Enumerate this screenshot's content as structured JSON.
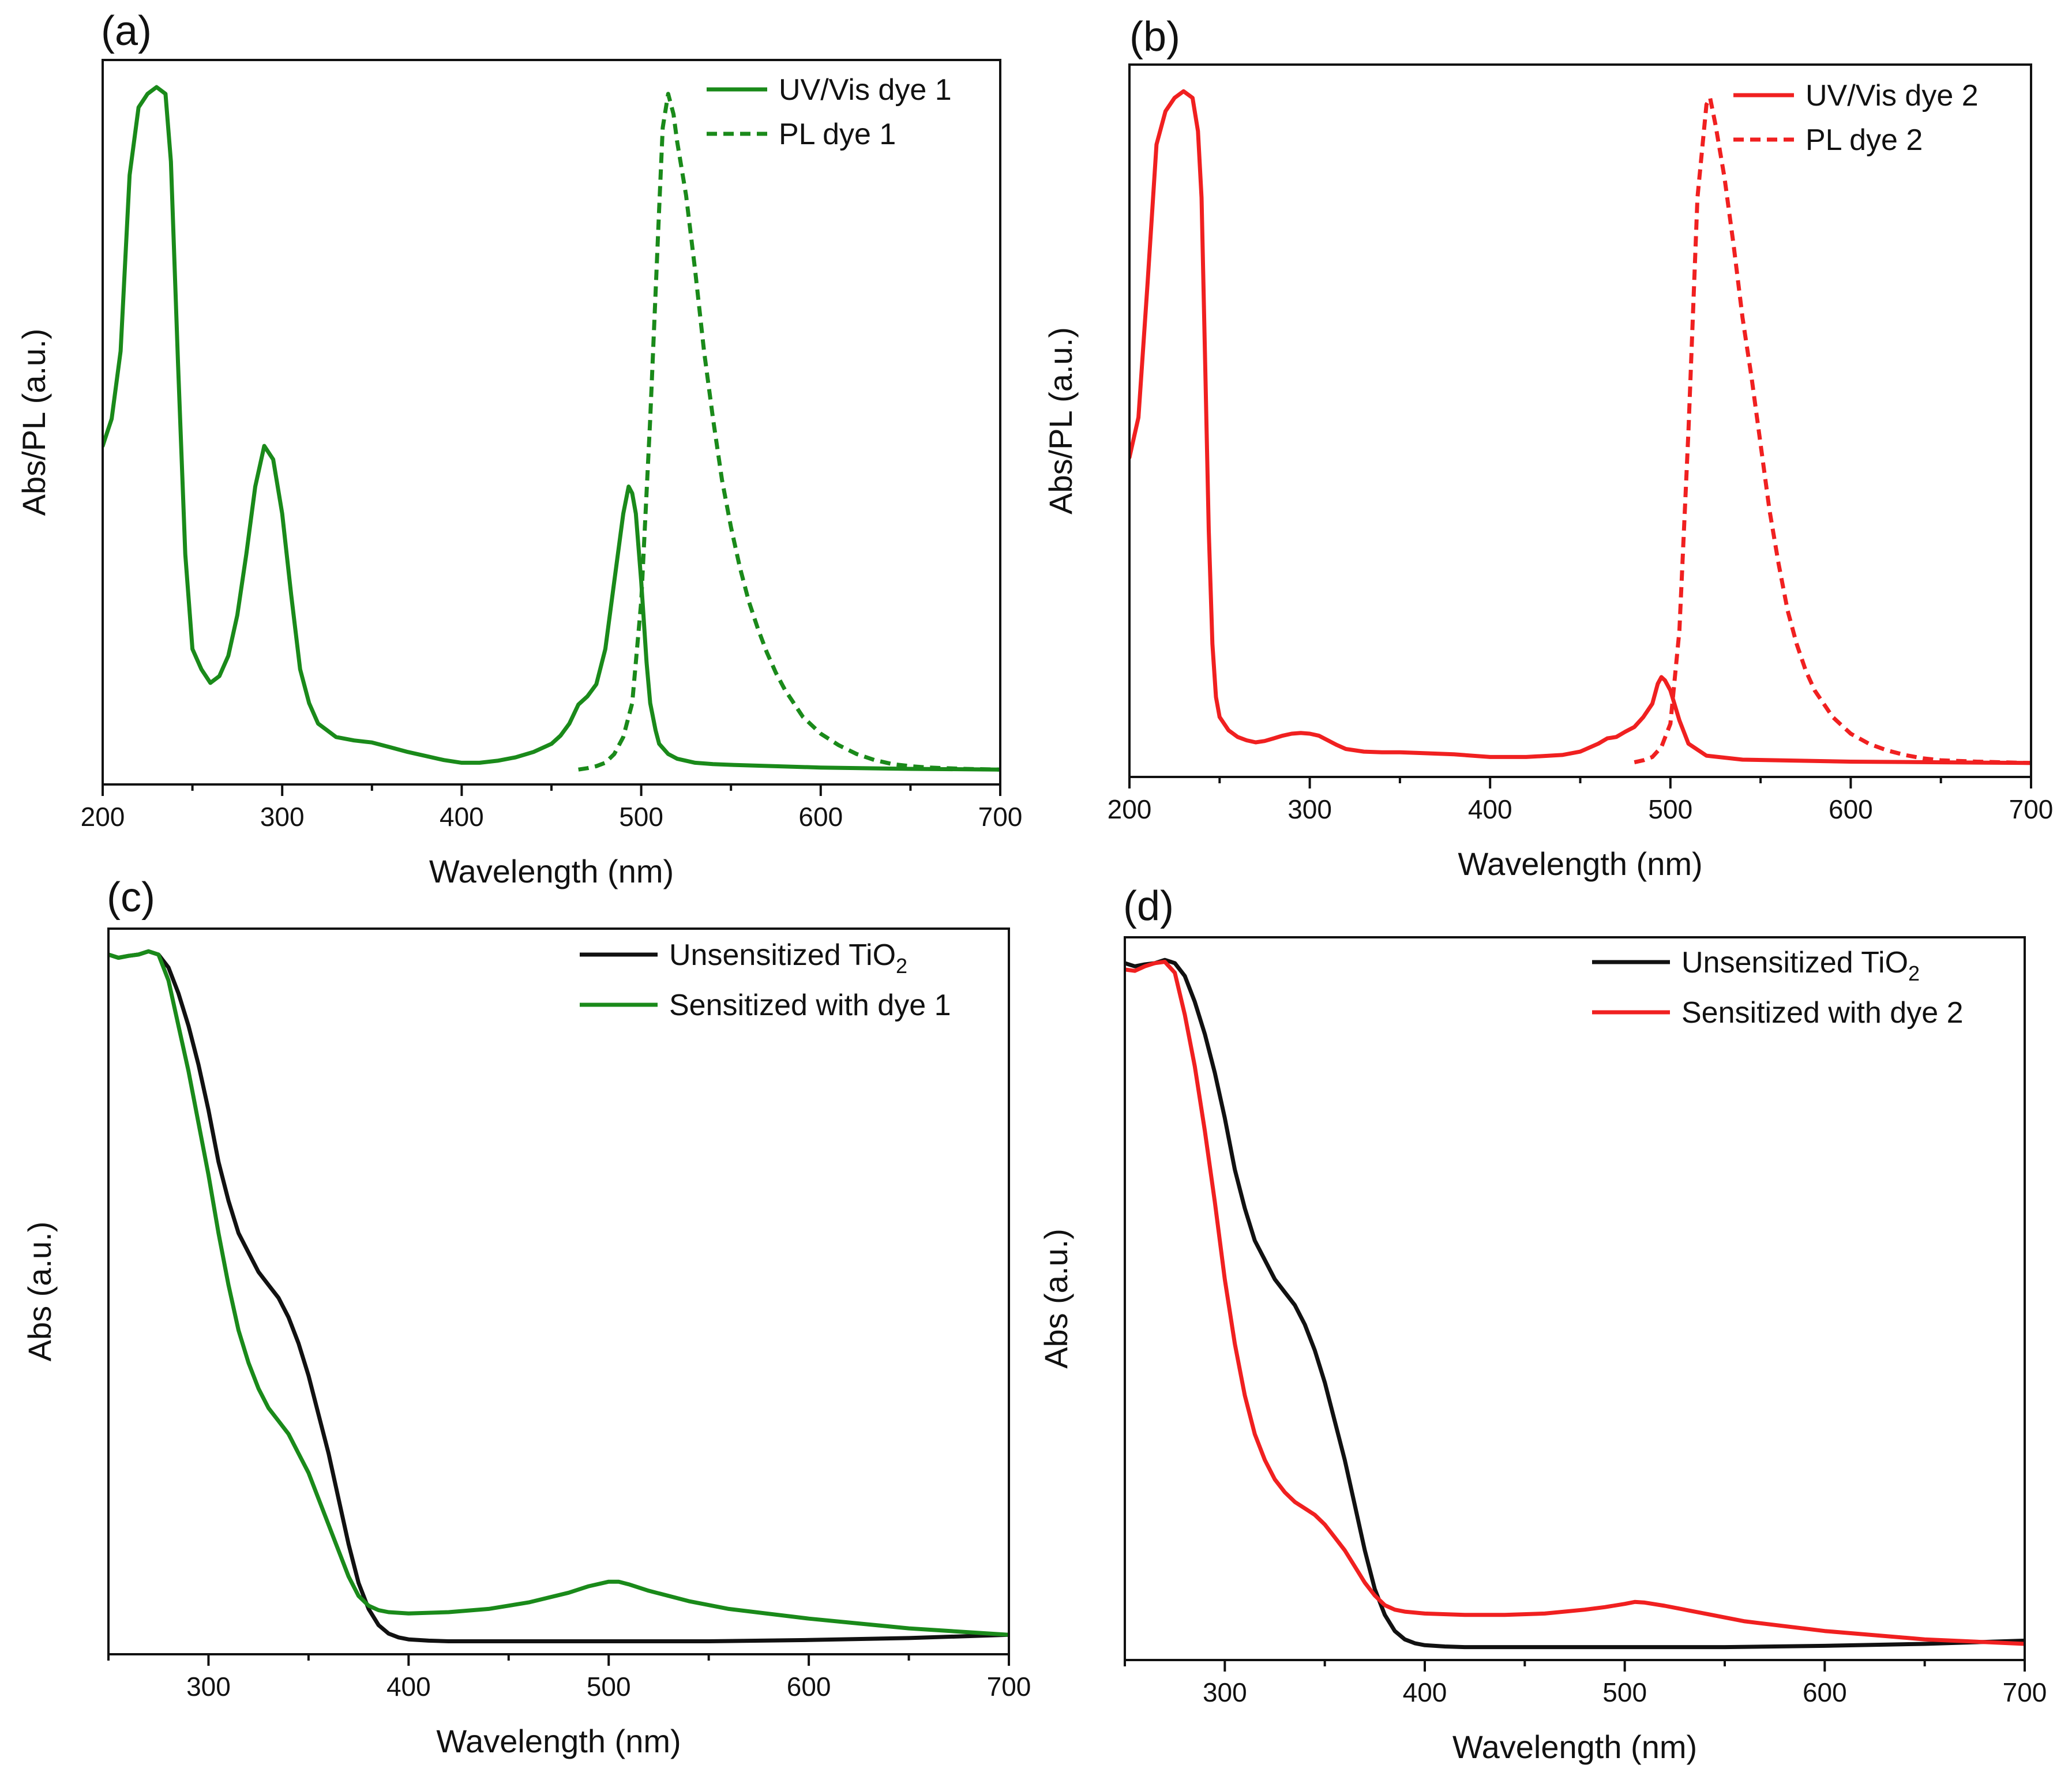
{
  "chart_data": [
    {
      "id": "a",
      "type": "line",
      "panel_label": "(a)",
      "xlabel": "Wavelength (nm)",
      "ylabel": "Abs/PL (a.u.)",
      "xlim": [
        200,
        700
      ],
      "ylim": [
        -0.02,
        1.05
      ],
      "xticks": [
        200,
        300,
        400,
        500,
        600,
        700
      ],
      "show_y_ticks": false,
      "legend_position": "top-right",
      "series": [
        {
          "name": "UV/Vis dye 1",
          "color": "#1a8a1a",
          "dash": "solid",
          "x": [
            200,
            205,
            210,
            215,
            220,
            225,
            230,
            235,
            238,
            242,
            246,
            250,
            255,
            260,
            265,
            270,
            275,
            280,
            285,
            290,
            295,
            300,
            305,
            310,
            315,
            320,
            325,
            330,
            340,
            350,
            360,
            370,
            380,
            390,
            400,
            410,
            420,
            430,
            440,
            450,
            455,
            460,
            465,
            470,
            475,
            480,
            485,
            490,
            493,
            495,
            497,
            500,
            503,
            505,
            508,
            510,
            515,
            520,
            530,
            540,
            550,
            600,
            650,
            700
          ],
          "y": [
            0.48,
            0.52,
            0.62,
            0.88,
            0.98,
            1.0,
            1.01,
            1.0,
            0.9,
            0.6,
            0.32,
            0.18,
            0.15,
            0.13,
            0.14,
            0.17,
            0.23,
            0.32,
            0.42,
            0.48,
            0.46,
            0.38,
            0.26,
            0.15,
            0.1,
            0.07,
            0.06,
            0.05,
            0.045,
            0.042,
            0.035,
            0.028,
            0.022,
            0.016,
            0.012,
            0.012,
            0.015,
            0.02,
            0.028,
            0.04,
            0.052,
            0.07,
            0.098,
            0.11,
            0.128,
            0.18,
            0.28,
            0.38,
            0.42,
            0.41,
            0.38,
            0.28,
            0.16,
            0.1,
            0.06,
            0.04,
            0.025,
            0.018,
            0.012,
            0.01,
            0.009,
            0.005,
            0.003,
            0.002
          ]
        },
        {
          "name": "PL dye 1",
          "color": "#1a8a1a",
          "dash": "dashed",
          "x": [
            465,
            470,
            475,
            480,
            485,
            490,
            495,
            500,
            505,
            510,
            512,
            515,
            518,
            520,
            525,
            530,
            535,
            540,
            545,
            550,
            555,
            560,
            565,
            570,
            575,
            580,
            590,
            600,
            610,
            620,
            630,
            640,
            650,
            660,
            680,
            700
          ],
          "y": [
            0.002,
            0.004,
            0.007,
            0.012,
            0.025,
            0.05,
            0.1,
            0.25,
            0.52,
            0.83,
            0.95,
            1.0,
            0.97,
            0.93,
            0.85,
            0.74,
            0.62,
            0.52,
            0.43,
            0.36,
            0.3,
            0.25,
            0.21,
            0.175,
            0.145,
            0.12,
            0.08,
            0.055,
            0.038,
            0.025,
            0.016,
            0.01,
            0.007,
            0.005,
            0.003,
            0.002
          ]
        }
      ]
    },
    {
      "id": "b",
      "type": "line",
      "panel_label": "(b)",
      "xlabel": "Wavelength (nm)",
      "ylabel": "Abs/PL (a.u.)",
      "xlim": [
        200,
        700
      ],
      "ylim": [
        -0.02,
        1.05
      ],
      "xticks": [
        200,
        300,
        400,
        500,
        600,
        700
      ],
      "show_y_ticks": false,
      "legend_position": "top-right",
      "series": [
        {
          "name": "UV/Vis dye 2",
          "color": "#f02020",
          "dash": "solid",
          "x": [
            200,
            205,
            210,
            215,
            220,
            225,
            230,
            235,
            238,
            240,
            242,
            244,
            246,
            248,
            250,
            255,
            260,
            265,
            270,
            275,
            280,
            285,
            290,
            295,
            300,
            305,
            310,
            315,
            320,
            330,
            340,
            350,
            360,
            380,
            400,
            420,
            440,
            450,
            460,
            465,
            470,
            475,
            480,
            485,
            490,
            493,
            495,
            497,
            500,
            505,
            510,
            520,
            540,
            600,
            650,
            700
          ],
          "y": [
            0.46,
            0.52,
            0.72,
            0.93,
            0.98,
            1.0,
            1.01,
            1.0,
            0.95,
            0.85,
            0.6,
            0.35,
            0.18,
            0.1,
            0.07,
            0.05,
            0.04,
            0.035,
            0.032,
            0.034,
            0.038,
            0.042,
            0.045,
            0.046,
            0.045,
            0.042,
            0.035,
            0.028,
            0.022,
            0.018,
            0.017,
            0.017,
            0.016,
            0.014,
            0.01,
            0.01,
            0.013,
            0.018,
            0.03,
            0.038,
            0.04,
            0.048,
            0.055,
            0.07,
            0.09,
            0.12,
            0.13,
            0.125,
            0.11,
            0.065,
            0.03,
            0.012,
            0.006,
            0.003,
            0.002,
            0.001
          ]
        },
        {
          "name": "PL dye 2",
          "color": "#f02020",
          "dash": "dashed",
          "x": [
            480,
            485,
            490,
            495,
            500,
            505,
            510,
            515,
            520,
            522,
            525,
            530,
            535,
            540,
            545,
            550,
            555,
            560,
            565,
            570,
            575,
            580,
            590,
            600,
            610,
            620,
            630,
            640,
            650,
            670,
            700
          ],
          "y": [
            0.002,
            0.005,
            0.01,
            0.025,
            0.06,
            0.2,
            0.5,
            0.85,
            0.99,
            1.0,
            0.96,
            0.88,
            0.78,
            0.67,
            0.58,
            0.48,
            0.38,
            0.3,
            0.23,
            0.18,
            0.14,
            0.11,
            0.07,
            0.045,
            0.03,
            0.02,
            0.013,
            0.008,
            0.005,
            0.003,
            0.001
          ]
        }
      ]
    },
    {
      "id": "c",
      "type": "line",
      "panel_label": "(c)",
      "xlabel": "Wavelength (nm)",
      "ylabel": "Abs (a.u.)",
      "xlim": [
        250,
        700
      ],
      "ylim": [
        -0.02,
        1.1
      ],
      "xticks": [
        300,
        400,
        500,
        600,
        700
      ],
      "show_y_ticks": false,
      "legend_position": "top-right",
      "series": [
        {
          "name": "Unsensitized TiO2",
          "legend_text": "Unsensitized TiO",
          "legend_sub": "2",
          "color": "#111111",
          "dash": "solid",
          "x": [
            250,
            255,
            260,
            265,
            270,
            275,
            280,
            285,
            290,
            295,
            300,
            305,
            310,
            315,
            320,
            325,
            330,
            335,
            340,
            345,
            350,
            355,
            360,
            365,
            370,
            375,
            380,
            385,
            390,
            395,
            400,
            410,
            420,
            450,
            500,
            550,
            600,
            650,
            700
          ],
          "y": [
            1.06,
            1.055,
            1.058,
            1.06,
            1.065,
            1.06,
            1.04,
            1.0,
            0.95,
            0.89,
            0.82,
            0.74,
            0.68,
            0.63,
            0.6,
            0.57,
            0.55,
            0.53,
            0.5,
            0.46,
            0.41,
            0.35,
            0.29,
            0.22,
            0.15,
            0.09,
            0.05,
            0.025,
            0.012,
            0.006,
            0.003,
            0.001,
            0.0,
            0.0,
            0.0,
            0.0,
            0.002,
            0.005,
            0.01
          ]
        },
        {
          "name": "Sensitized with dye 1",
          "color": "#1a8a1a",
          "dash": "solid",
          "x": [
            250,
            255,
            260,
            265,
            270,
            275,
            280,
            285,
            290,
            295,
            300,
            305,
            310,
            315,
            320,
            325,
            330,
            335,
            340,
            345,
            350,
            355,
            360,
            365,
            370,
            375,
            380,
            385,
            390,
            400,
            420,
            440,
            460,
            480,
            490,
            500,
            505,
            510,
            520,
            540,
            560,
            600,
            650,
            700
          ],
          "y": [
            1.06,
            1.055,
            1.058,
            1.06,
            1.065,
            1.06,
            1.02,
            0.95,
            0.88,
            0.8,
            0.72,
            0.63,
            0.55,
            0.48,
            0.43,
            0.39,
            0.36,
            0.34,
            0.32,
            0.29,
            0.26,
            0.22,
            0.18,
            0.14,
            0.1,
            0.07,
            0.055,
            0.048,
            0.045,
            0.043,
            0.045,
            0.05,
            0.06,
            0.075,
            0.085,
            0.092,
            0.092,
            0.088,
            0.078,
            0.062,
            0.05,
            0.035,
            0.02,
            0.01
          ]
        }
      ]
    },
    {
      "id": "d",
      "type": "line",
      "panel_label": "(d)",
      "xlabel": "Wavelength (nm)",
      "ylabel": "Abs (a.u.)",
      "xlim": [
        250,
        700
      ],
      "ylim": [
        -0.02,
        1.1
      ],
      "xticks": [
        300,
        400,
        500,
        600,
        700
      ],
      "show_y_ticks": false,
      "legend_position": "top-right",
      "series": [
        {
          "name": "Unsensitized TiO2",
          "legend_text": "Unsensitized TiO",
          "legend_sub": "2",
          "color": "#111111",
          "dash": "solid",
          "x": [
            250,
            255,
            260,
            265,
            270,
            275,
            280,
            285,
            290,
            295,
            300,
            305,
            310,
            315,
            320,
            325,
            330,
            335,
            340,
            345,
            350,
            355,
            360,
            365,
            370,
            375,
            380,
            385,
            390,
            395,
            400,
            410,
            420,
            450,
            500,
            550,
            600,
            650,
            700
          ],
          "y": [
            1.06,
            1.055,
            1.058,
            1.06,
            1.065,
            1.06,
            1.04,
            1.0,
            0.95,
            0.89,
            0.82,
            0.74,
            0.68,
            0.63,
            0.6,
            0.57,
            0.55,
            0.53,
            0.5,
            0.46,
            0.41,
            0.35,
            0.29,
            0.22,
            0.15,
            0.09,
            0.05,
            0.025,
            0.012,
            0.006,
            0.003,
            0.001,
            0.0,
            0.0,
            0.0,
            0.0,
            0.002,
            0.005,
            0.01
          ]
        },
        {
          "name": "Sensitized with dye 2",
          "color": "#f02020",
          "dash": "solid",
          "x": [
            250,
            255,
            260,
            265,
            270,
            275,
            280,
            285,
            290,
            295,
            300,
            305,
            310,
            315,
            320,
            325,
            330,
            335,
            340,
            345,
            350,
            355,
            360,
            365,
            370,
            375,
            380,
            385,
            390,
            400,
            420,
            440,
            460,
            480,
            490,
            500,
            505,
            510,
            520,
            540,
            560,
            600,
            650,
            700
          ],
          "y": [
            1.05,
            1.048,
            1.055,
            1.06,
            1.062,
            1.045,
            0.98,
            0.9,
            0.8,
            0.69,
            0.57,
            0.47,
            0.39,
            0.33,
            0.29,
            0.26,
            0.24,
            0.225,
            0.215,
            0.205,
            0.19,
            0.17,
            0.15,
            0.125,
            0.1,
            0.08,
            0.065,
            0.058,
            0.055,
            0.052,
            0.05,
            0.05,
            0.052,
            0.058,
            0.062,
            0.067,
            0.07,
            0.069,
            0.064,
            0.052,
            0.04,
            0.025,
            0.012,
            0.005
          ]
        }
      ]
    }
  ]
}
